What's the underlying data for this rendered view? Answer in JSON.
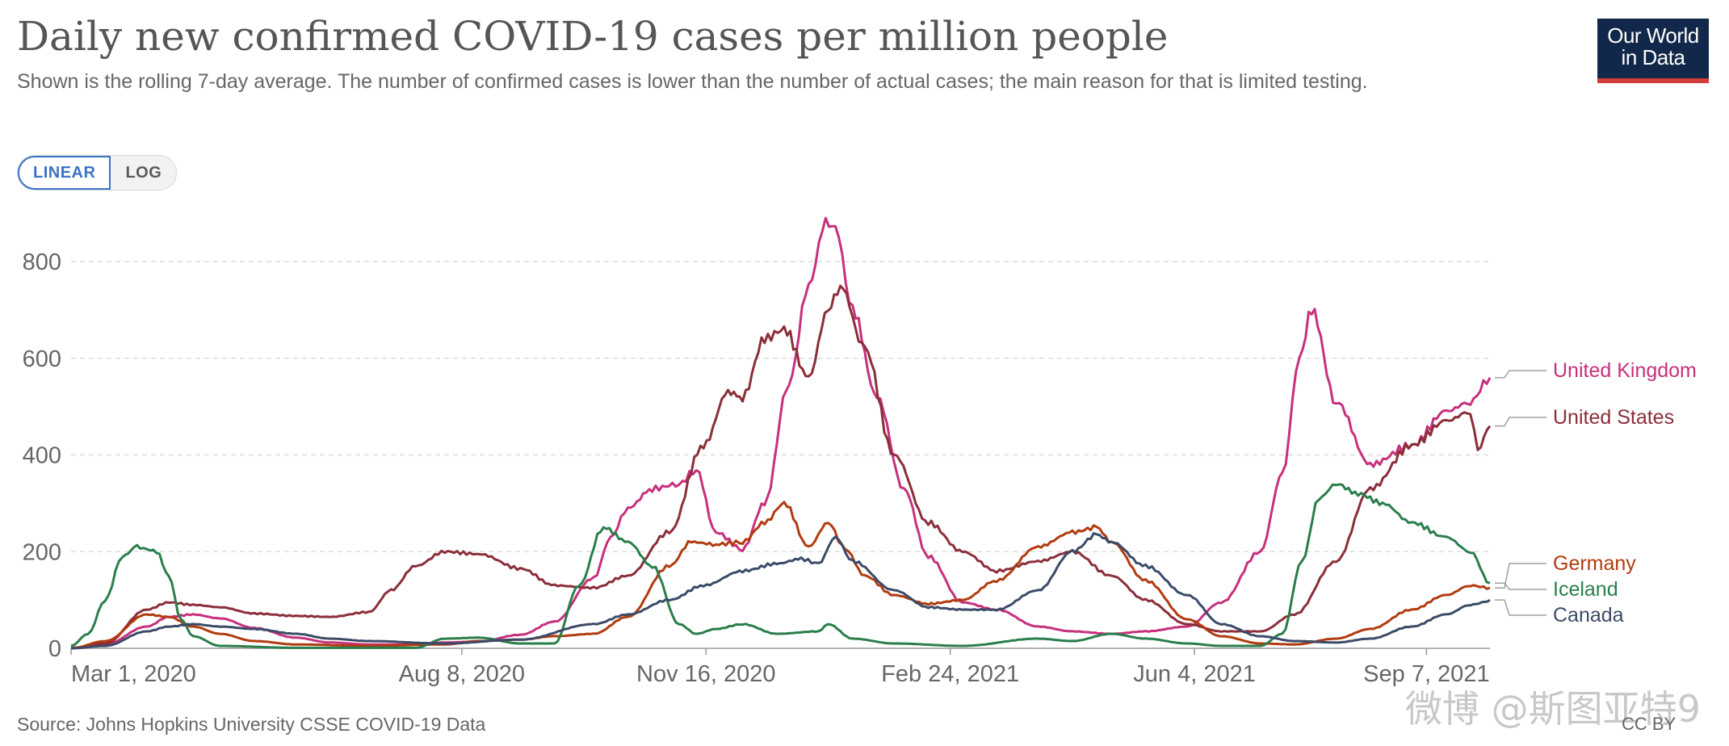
{
  "header": {
    "title": "Daily new confirmed COVID-19 cases per million people",
    "subtitle": "Shown is the rolling 7-day average. The number of confirmed cases is lower than the number of actual cases; the main reason for that is limited testing."
  },
  "controls": {
    "linear_label": "LINEAR",
    "log_label": "LOG",
    "active": "LINEAR"
  },
  "logo": {
    "line1": "Our World",
    "line2": "in Data"
  },
  "footer": {
    "source": "Source: Johns Hopkins University CSSE COVID-19 Data",
    "license": "CC BY"
  },
  "watermark": "微博 @斯图亚特9",
  "chart_data": {
    "type": "line",
    "title": "Daily new confirmed COVID-19 cases per million people",
    "ylabel": "",
    "xlabel": "",
    "x_range": [
      "2020-03-01",
      "2021-10-03"
    ],
    "ylim": [
      0,
      880
    ],
    "y_ticks": [
      0,
      200,
      400,
      600,
      800
    ],
    "y_tick_labels": [
      "0",
      "200",
      "400",
      "600",
      "800"
    ],
    "x_ticks": [
      "2020-03-01",
      "2020-08-08",
      "2020-11-16",
      "2021-02-24",
      "2021-06-04",
      "2021-09-07"
    ],
    "x_tick_labels": [
      "Mar 1, 2020",
      "Aug 8, 2020",
      "Nov 16, 2020",
      "Feb 24, 2021",
      "Jun 4, 2021",
      "Sep 7, 2021"
    ],
    "grid": "horizontal dashed",
    "legend": "end-of-line labels (right)",
    "series": [
      {
        "name": "United Kingdom",
        "color": "#c7307c",
        "x": [
          "2020-03-01",
          "2020-03-15",
          "2020-04-01",
          "2020-04-10",
          "2020-04-20",
          "2020-05-01",
          "2020-05-15",
          "2020-06-01",
          "2020-06-15",
          "2020-07-01",
          "2020-07-15",
          "2020-08-01",
          "2020-08-15",
          "2020-09-01",
          "2020-09-15",
          "2020-10-01",
          "2020-10-08",
          "2020-10-15",
          "2020-10-25",
          "2020-11-05",
          "2020-11-12",
          "2020-11-20",
          "2020-12-01",
          "2020-12-10",
          "2020-12-20",
          "2020-12-28",
          "2021-01-04",
          "2021-01-08",
          "2021-01-15",
          "2021-01-25",
          "2021-02-05",
          "2021-02-15",
          "2021-03-01",
          "2021-03-15",
          "2021-04-01",
          "2021-04-15",
          "2021-05-01",
          "2021-05-15",
          "2021-06-01",
          "2021-06-15",
          "2021-07-01",
          "2021-07-10",
          "2021-07-17",
          "2021-07-22",
          "2021-08-01",
          "2021-08-15",
          "2021-09-01",
          "2021-09-15",
          "2021-09-25",
          "2021-10-03"
        ],
        "y": [
          1,
          8,
          45,
          65,
          70,
          62,
          42,
          22,
          12,
          8,
          8,
          12,
          14,
          28,
          55,
          145,
          230,
          290,
          330,
          340,
          370,
          240,
          205,
          300,
          550,
          750,
          880,
          870,
          700,
          520,
          330,
          190,
          95,
          80,
          45,
          35,
          30,
          35,
          45,
          95,
          200,
          360,
          600,
          700,
          510,
          380,
          420,
          490,
          510,
          560
        ]
      },
      {
        "name": "United States",
        "color": "#8b2e3a",
        "x": [
          "2020-03-01",
          "2020-03-15",
          "2020-04-01",
          "2020-04-10",
          "2020-04-20",
          "2020-05-01",
          "2020-05-15",
          "2020-06-01",
          "2020-06-15",
          "2020-07-01",
          "2020-07-10",
          "2020-07-20",
          "2020-08-01",
          "2020-08-15",
          "2020-09-01",
          "2020-09-15",
          "2020-10-01",
          "2020-10-15",
          "2020-11-01",
          "2020-11-15",
          "2020-11-25",
          "2020-12-01",
          "2020-12-10",
          "2020-12-18",
          "2020-12-28",
          "2021-01-05",
          "2021-01-10",
          "2021-01-20",
          "2021-02-01",
          "2021-02-15",
          "2021-03-01",
          "2021-03-15",
          "2021-04-01",
          "2021-04-15",
          "2021-05-01",
          "2021-05-15",
          "2021-06-01",
          "2021-06-15",
          "2021-07-01",
          "2021-07-15",
          "2021-08-01",
          "2021-08-15",
          "2021-09-01",
          "2021-09-15",
          "2021-09-25",
          "2021-09-28",
          "2021-10-03"
        ],
        "y": [
          1,
          10,
          80,
          95,
          90,
          85,
          72,
          67,
          65,
          75,
          120,
          170,
          200,
          195,
          165,
          130,
          125,
          150,
          240,
          420,
          530,
          520,
          640,
          660,
          560,
          700,
          750,
          620,
          400,
          260,
          200,
          160,
          180,
          200,
          150,
          100,
          50,
          35,
          35,
          70,
          180,
          330,
          420,
          470,
          490,
          410,
          460
        ]
      },
      {
        "name": "Germany",
        "color": "#b13b0f",
        "x": [
          "2020-03-01",
          "2020-03-15",
          "2020-04-01",
          "2020-04-10",
          "2020-04-20",
          "2020-05-01",
          "2020-05-15",
          "2020-06-01",
          "2020-07-01",
          "2020-08-01",
          "2020-08-15",
          "2020-09-01",
          "2020-09-15",
          "2020-10-01",
          "2020-10-15",
          "2020-11-01",
          "2020-11-10",
          "2020-11-20",
          "2020-12-01",
          "2020-12-10",
          "2020-12-18",
          "2020-12-28",
          "2021-01-05",
          "2021-01-12",
          "2021-01-20",
          "2021-02-01",
          "2021-02-15",
          "2021-03-01",
          "2021-03-15",
          "2021-04-01",
          "2021-04-15",
          "2021-04-25",
          "2021-05-01",
          "2021-05-15",
          "2021-06-01",
          "2021-06-15",
          "2021-07-01",
          "2021-07-15",
          "2021-08-01",
          "2021-08-15",
          "2021-09-01",
          "2021-09-15",
          "2021-09-25",
          "2021-10-03"
        ],
        "y": [
          0,
          15,
          70,
          65,
          45,
          30,
          15,
          8,
          5,
          8,
          15,
          18,
          25,
          30,
          65,
          170,
          220,
          215,
          220,
          260,
          300,
          210,
          260,
          205,
          150,
          110,
          92,
          100,
          140,
          210,
          240,
          250,
          220,
          140,
          60,
          25,
          10,
          8,
          20,
          40,
          80,
          110,
          130,
          125
        ]
      },
      {
        "name": "Iceland",
        "color": "#2a7e4b",
        "x": [
          "2020-03-01",
          "2020-03-08",
          "2020-03-15",
          "2020-03-22",
          "2020-03-28",
          "2020-04-01",
          "2020-04-05",
          "2020-04-10",
          "2020-04-15",
          "2020-04-20",
          "2020-05-01",
          "2020-06-01",
          "2020-07-01",
          "2020-07-20",
          "2020-08-01",
          "2020-08-15",
          "2020-09-01",
          "2020-09-15",
          "2020-09-25",
          "2020-10-05",
          "2020-10-15",
          "2020-10-25",
          "2020-11-05",
          "2020-11-12",
          "2020-11-20",
          "2020-12-01",
          "2020-12-15",
          "2021-01-01",
          "2021-01-05",
          "2021-01-15",
          "2021-02-01",
          "2021-03-01",
          "2021-04-01",
          "2021-04-15",
          "2021-05-01",
          "2021-05-15",
          "2021-06-01",
          "2021-06-15",
          "2021-07-01",
          "2021-07-10",
          "2021-07-18",
          "2021-07-25",
          "2021-08-01",
          "2021-08-10",
          "2021-08-20",
          "2021-09-01",
          "2021-09-15",
          "2021-09-25",
          "2021-10-03"
        ],
        "y": [
          5,
          30,
          100,
          190,
          210,
          205,
          200,
          150,
          60,
          25,
          5,
          1,
          1,
          1,
          20,
          22,
          10,
          10,
          130,
          250,
          220,
          170,
          50,
          30,
          40,
          50,
          30,
          35,
          50,
          20,
          10,
          5,
          20,
          15,
          30,
          20,
          10,
          5,
          5,
          30,
          180,
          310,
          340,
          320,
          300,
          260,
          230,
          200,
          135
        ]
      },
      {
        "name": "Canada",
        "color": "#3c4b68",
        "x": [
          "2020-03-01",
          "2020-03-15",
          "2020-04-01",
          "2020-04-10",
          "2020-04-20",
          "2020-05-01",
          "2020-05-15",
          "2020-06-01",
          "2020-06-15",
          "2020-07-01",
          "2020-08-01",
          "2020-09-01",
          "2020-10-01",
          "2020-10-15",
          "2020-11-01",
          "2020-11-15",
          "2020-12-01",
          "2020-12-15",
          "2020-12-25",
          "2021-01-01",
          "2021-01-08",
          "2021-01-15",
          "2021-02-01",
          "2021-02-15",
          "2021-03-01",
          "2021-03-15",
          "2021-04-01",
          "2021-04-15",
          "2021-04-25",
          "2021-05-01",
          "2021-05-15",
          "2021-06-01",
          "2021-06-15",
          "2021-07-01",
          "2021-07-15",
          "2021-08-01",
          "2021-08-15",
          "2021-09-01",
          "2021-09-15",
          "2021-09-25",
          "2021-10-01",
          "2021-10-03"
        ],
        "y": [
          0,
          5,
          35,
          45,
          50,
          45,
          40,
          30,
          20,
          15,
          10,
          18,
          50,
          70,
          100,
          130,
          160,
          175,
          185,
          175,
          230,
          180,
          120,
          85,
          80,
          80,
          120,
          200,
          235,
          220,
          170,
          110,
          50,
          25,
          15,
          12,
          20,
          45,
          70,
          90,
          95,
          100
        ]
      }
    ],
    "end_labels": [
      "United Kingdom",
      "United States",
      "Germany",
      "Iceland",
      "Canada"
    ]
  }
}
